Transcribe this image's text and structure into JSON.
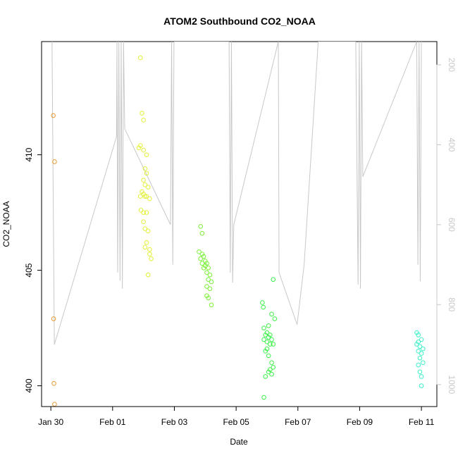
{
  "chart_data": {
    "type": "scatter",
    "title": "ATOM2 Southbound CO2_NOAA",
    "xlabel": "Date",
    "ylabel": "CO2_NOAA",
    "x_ticks": [
      "Jan 30",
      "Feb 01",
      "Feb 03",
      "Feb 05",
      "Feb 07",
      "Feb 09",
      "Feb 11"
    ],
    "y_ticks": [
      "400",
      "405",
      "410"
    ],
    "y2_ticks": [
      "200",
      "400",
      "600",
      "800",
      "1000"
    ],
    "xlim_days": [
      -0.3,
      12.5
    ],
    "ylim": [
      399.1,
      414.9
    ],
    "y2lim": [
      1055,
      142
    ],
    "colors": {
      "profile_line": "#c8c8c8",
      "y2_axis": "#c8c8c8"
    },
    "profile_line": {
      "description_axis": "pressure (right axis)",
      "x_days": [
        0.05,
        0.15,
        2.8,
        2.82,
        2.85,
        2.9,
        2.95,
        3.0,
        3.05,
        3.1,
        3.15,
        5.1,
        5.15,
        5.2,
        5.25,
        7.6,
        7.65,
        7.7,
        7.75,
        7.8,
        9.7,
        9.73,
        10.5,
        10.8,
        11.4,
        12.0,
        13.0,
        13.1,
        13.15,
        13.2,
        13.25,
        13.3,
        15.6,
        15.65,
        15.7,
        15.75,
        15.8
      ],
      "y_pressure": [
        142,
        900,
        380,
        142,
        720,
        142,
        740,
        142,
        760,
        142,
        360,
        600,
        142,
        700,
        142,
        142,
        720,
        142,
        745,
        600,
        142,
        720,
        850,
        700,
        142,
        142,
        142,
        750,
        142,
        760,
        142,
        480,
        142,
        700,
        142,
        742,
        142
      ]
    },
    "series": [
      {
        "color": "#e69a33",
        "points": [
          [
            0.08,
            411.7
          ],
          [
            0.12,
            409.7
          ],
          [
            0.09,
            402.9
          ],
          [
            0.1,
            400.1
          ],
          [
            0.12,
            399.2
          ]
        ]
      },
      {
        "color": "#e3f03a",
        "points": [
          [
            2.9,
            414.2
          ],
          [
            2.95,
            411.8
          ],
          [
            3.0,
            411.5
          ],
          [
            2.85,
            410.3
          ],
          [
            2.9,
            410.4
          ],
          [
            3.0,
            410.2
          ],
          [
            3.1,
            410.0
          ],
          [
            3.05,
            409.4
          ],
          [
            3.1,
            409.2
          ],
          [
            3.0,
            408.9
          ],
          [
            3.05,
            408.7
          ],
          [
            3.15,
            408.6
          ],
          [
            2.95,
            408.4
          ],
          [
            3.0,
            408.3
          ],
          [
            2.9,
            408.2
          ],
          [
            3.05,
            408.2
          ],
          [
            3.1,
            408.2
          ],
          [
            3.2,
            408.1
          ],
          [
            2.92,
            407.6
          ],
          [
            3.0,
            407.5
          ],
          [
            3.1,
            407.5
          ],
          [
            3.0,
            407.1
          ],
          [
            3.05,
            406.8
          ],
          [
            3.15,
            406.7
          ],
          [
            3.1,
            406.2
          ],
          [
            3.05,
            406.0
          ],
          [
            3.2,
            405.9
          ],
          [
            3.2,
            405.7
          ],
          [
            3.25,
            405.5
          ],
          [
            3.15,
            404.8
          ]
        ]
      },
      {
        "color": "#7cf03a",
        "points": [
          [
            4.85,
            406.9
          ],
          [
            4.9,
            406.6
          ],
          [
            4.8,
            405.8
          ],
          [
            4.9,
            405.7
          ],
          [
            4.95,
            405.6
          ],
          [
            5.0,
            405.4
          ],
          [
            4.85,
            405.5
          ],
          [
            4.9,
            405.3
          ],
          [
            5.05,
            405.3
          ],
          [
            5.0,
            405.2
          ],
          [
            4.95,
            405.1
          ],
          [
            5.1,
            405.1
          ],
          [
            5.05,
            404.9
          ],
          [
            5.15,
            404.8
          ],
          [
            5.1,
            404.6
          ],
          [
            5.2,
            404.5
          ],
          [
            5.05,
            404.3
          ],
          [
            5.15,
            404.2
          ],
          [
            5.05,
            403.9
          ],
          [
            5.1,
            403.8
          ],
          [
            5.2,
            403.5
          ]
        ]
      },
      {
        "color": "#3cf04a",
        "points": [
          [
            6.85,
            403.6
          ],
          [
            6.88,
            403.4
          ],
          [
            7.2,
            404.6
          ],
          [
            7.15,
            403.1
          ],
          [
            7.25,
            402.9
          ],
          [
            7.05,
            402.6
          ],
          [
            6.9,
            402.5
          ],
          [
            7.0,
            402.3
          ],
          [
            6.95,
            402.2
          ],
          [
            7.1,
            402.2
          ],
          [
            7.05,
            402.1
          ],
          [
            7.15,
            402.0
          ],
          [
            6.9,
            402.0
          ],
          [
            7.0,
            401.9
          ],
          [
            7.1,
            401.8
          ],
          [
            7.2,
            401.8
          ],
          [
            7.0,
            401.6
          ],
          [
            6.95,
            401.5
          ],
          [
            7.05,
            401.3
          ],
          [
            7.15,
            401.0
          ],
          [
            7.2,
            400.8
          ],
          [
            7.1,
            400.7
          ],
          [
            7.05,
            400.6
          ],
          [
            7.15,
            400.5
          ],
          [
            6.95,
            400.4
          ],
          [
            6.9,
            399.5
          ]
        ]
      },
      {
        "color": "#3cf0c8",
        "points": [
          [
            11.85,
            402.3
          ],
          [
            11.9,
            402.2
          ],
          [
            12.0,
            402.0
          ],
          [
            11.9,
            401.9
          ],
          [
            11.85,
            401.8
          ],
          [
            11.95,
            401.7
          ],
          [
            12.05,
            401.6
          ],
          [
            11.9,
            401.5
          ],
          [
            12.0,
            401.4
          ],
          [
            11.95,
            401.2
          ],
          [
            12.05,
            401.0
          ],
          [
            11.9,
            400.9
          ],
          [
            11.95,
            400.6
          ],
          [
            12.0,
            400.4
          ],
          [
            12.0,
            400.0
          ]
        ]
      }
    ]
  }
}
